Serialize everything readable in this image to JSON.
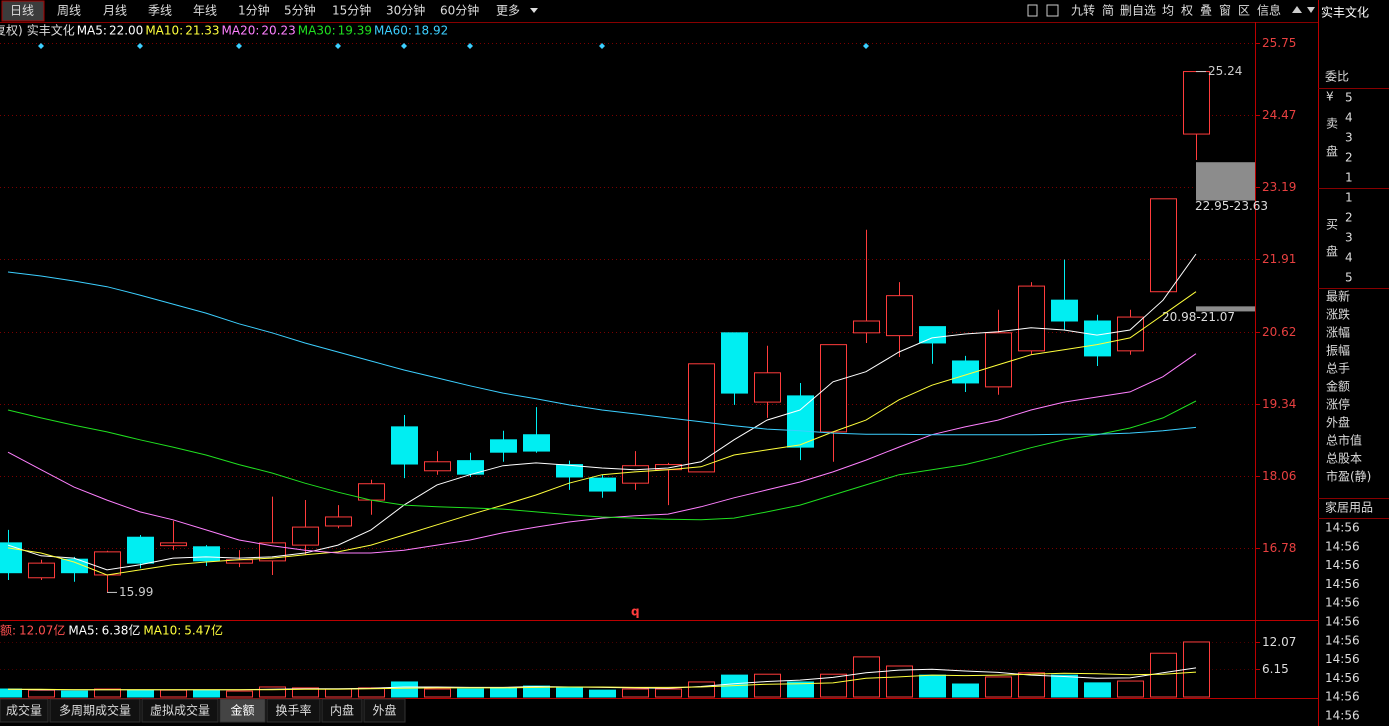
{
  "toolbar": {
    "tabs": [
      "日线",
      "周线",
      "月线",
      "季线",
      "年线",
      "1分钟",
      "5分钟",
      "15分钟",
      "30分钟",
      "60分钟",
      "更多"
    ],
    "active": 0,
    "tools": [
      "九转",
      "简",
      "删自选",
      "均",
      "权",
      "叠",
      "窗",
      "区",
      "信息"
    ],
    "stock_name": "实丰文化"
  },
  "chart_data": [
    {
      "type": "candlestick",
      "prefix": "复权)",
      "name": "实丰文化",
      "open": [
        16.87,
        16.25,
        16.58,
        16.3,
        16.97,
        16.82,
        16.8,
        16.51,
        16.55,
        16.83,
        17.17,
        17.63,
        18.93,
        18.15,
        18.33,
        18.7,
        18.79,
        18.26,
        18.02,
        17.93,
        18.17,
        18.13,
        20.6,
        19.37,
        19.48,
        18.84,
        20.6,
        20.55,
        20.71,
        20.1,
        19.64,
        20.28,
        21.18,
        20.81,
        20.28,
        21.33,
        24.13
      ],
      "high": [
        17.1,
        16.57,
        16.62,
        16.73,
        17.01,
        17.26,
        16.83,
        16.74,
        17.69,
        17.63,
        17.54,
        17.99,
        19.14,
        18.5,
        18.47,
        18.86,
        19.28,
        18.33,
        18.08,
        18.5,
        18.29,
        20.05,
        20.6,
        20.37,
        19.71,
        20.39,
        22.43,
        21.5,
        20.71,
        20.19,
        21.01,
        21.5,
        21.9,
        20.92,
        21.01,
        22.98,
        25.24
      ],
      "low": [
        16.21,
        16.21,
        16.18,
        15.99,
        16.42,
        16.74,
        16.46,
        16.44,
        16.3,
        16.66,
        17.13,
        17.37,
        18.02,
        18.08,
        18.04,
        18.31,
        18.47,
        17.81,
        17.67,
        17.81,
        17.54,
        18.13,
        19.32,
        19.09,
        18.34,
        18.31,
        20.42,
        20.17,
        20.05,
        19.55,
        19.5,
        20.21,
        20.65,
        20.01,
        20.21,
        21.33,
        23.67
      ],
      "close": [
        16.34,
        16.51,
        16.34,
        16.71,
        16.51,
        16.87,
        16.55,
        16.57,
        16.87,
        17.15,
        17.33,
        17.92,
        18.27,
        18.31,
        18.09,
        18.48,
        18.5,
        18.04,
        17.79,
        18.24,
        18.26,
        20.05,
        19.53,
        19.89,
        18.57,
        20.39,
        20.81,
        21.26,
        20.42,
        19.71,
        20.6,
        21.43,
        20.81,
        20.19,
        20.88,
        22.98,
        25.24
      ],
      "up_color": "#ff3c3c",
      "down_color": "#00eef2",
      "series": [
        {
          "name": "MA5:",
          "value_label": "22.00",
          "color": "#ffffff",
          "values": [
            16.83,
            16.64,
            16.6,
            16.39,
            16.48,
            16.6,
            16.62,
            16.6,
            16.62,
            16.69,
            16.83,
            17.1,
            17.54,
            17.9,
            18.08,
            18.24,
            18.29,
            18.25,
            18.2,
            18.17,
            18.2,
            18.31,
            18.7,
            19.05,
            19.23,
            19.73,
            19.91,
            20.26,
            20.51,
            20.58,
            20.62,
            20.69,
            20.65,
            20.56,
            20.65,
            21.18,
            22.0
          ]
        },
        {
          "name": "MA10:",
          "value_label": "21.33",
          "color": "#ffff3c",
          "values": [
            16.78,
            16.69,
            16.53,
            16.3,
            16.39,
            16.48,
            16.53,
            16.57,
            16.6,
            16.66,
            16.71,
            16.83,
            17.01,
            17.19,
            17.37,
            17.54,
            17.72,
            17.93,
            18.08,
            18.13,
            18.17,
            18.22,
            18.43,
            18.52,
            18.61,
            18.84,
            19.05,
            19.41,
            19.67,
            19.85,
            20.03,
            20.21,
            20.3,
            20.39,
            20.51,
            20.92,
            21.33
          ]
        },
        {
          "name": "MA20:",
          "value_label": "20.23",
          "color": "#ff80ff",
          "values": [
            18.48,
            18.17,
            17.86,
            17.63,
            17.42,
            17.28,
            17.1,
            16.92,
            16.82,
            16.74,
            16.69,
            16.69,
            16.74,
            16.83,
            16.92,
            17.05,
            17.15,
            17.24,
            17.31,
            17.35,
            17.38,
            17.51,
            17.67,
            17.81,
            17.95,
            18.13,
            18.34,
            18.57,
            18.79,
            18.93,
            19.05,
            19.23,
            19.37,
            19.46,
            19.55,
            19.82,
            20.23
          ]
        },
        {
          "name": "MA30:",
          "value_label": "19.39",
          "color": "#20e020",
          "values": [
            19.23,
            19.09,
            18.96,
            18.84,
            18.7,
            18.57,
            18.43,
            18.26,
            18.11,
            17.93,
            17.77,
            17.63,
            17.54,
            17.51,
            17.49,
            17.47,
            17.42,
            17.37,
            17.33,
            17.31,
            17.29,
            17.28,
            17.31,
            17.42,
            17.54,
            17.72,
            17.9,
            18.08,
            18.17,
            18.26,
            18.4,
            18.56,
            18.7,
            18.79,
            18.91,
            19.09,
            19.39
          ]
        },
        {
          "name": "MA60:",
          "value_label": "18.92",
          "color": "#3ccfff",
          "values": [
            21.68,
            21.61,
            21.52,
            21.42,
            21.27,
            21.11,
            20.95,
            20.76,
            20.6,
            20.42,
            20.26,
            20.1,
            19.94,
            19.8,
            19.66,
            19.53,
            19.43,
            19.32,
            19.23,
            19.16,
            19.09,
            19.02,
            18.95,
            18.89,
            18.86,
            18.82,
            18.8,
            18.8,
            18.79,
            18.79,
            18.79,
            18.79,
            18.8,
            18.8,
            18.82,
            18.86,
            18.92
          ]
        }
      ],
      "ylim": [
        15.5,
        26.12
      ],
      "yticks": [
        25.75,
        24.47,
        23.19,
        21.91,
        20.62,
        19.34,
        18.06,
        16.78
      ],
      "high_mark": {
        "index": 36,
        "value": 25.24
      },
      "low_mark": {
        "index": 3,
        "value": 15.99
      },
      "bands": [
        {
          "low": 22.95,
          "high": 23.63,
          "label": "22.95-23.63",
          "color": "#8c8c8c"
        },
        {
          "low": 20.98,
          "high": 21.07,
          "label": "20.98-21.07",
          "color": "#8c8c8c"
        }
      ],
      "event_markers": [
        1,
        4,
        7,
        10,
        12,
        14,
        18,
        26
      ],
      "event_color": "#3ccfff",
      "note": {
        "index": 19,
        "text": "q"
      }
    },
    {
      "type": "bar",
      "header": [
        "额:",
        "12.07亿"
      ],
      "values": [
        1.75,
        1.5,
        1.3,
        1.75,
        1.5,
        1.5,
        1.5,
        1.3,
        2.2,
        2.0,
        1.75,
        2.0,
        3.3,
        1.75,
        1.75,
        2.0,
        2.4,
        2.2,
        1.5,
        1.75,
        1.75,
        3.3,
        4.8,
        5.0,
        3.3,
        5.0,
        8.8,
        6.8,
        4.8,
        2.85,
        4.4,
        5.3,
        4.8,
        3.1,
        3.5,
        9.6,
        12.07
      ],
      "series": [
        {
          "name": "MA5:",
          "value_label": "6.38亿",
          "color": "#ffffff",
          "values": [
            1.7,
            1.6,
            1.6,
            1.6,
            1.6,
            1.6,
            1.6,
            1.6,
            1.7,
            1.8,
            1.8,
            1.9,
            2.2,
            2.2,
            2.1,
            2.1,
            2.3,
            2.2,
            2.1,
            2.0,
            1.9,
            2.3,
            2.9,
            3.4,
            3.7,
            4.3,
            5.3,
            5.9,
            6.1,
            5.7,
            5.4,
            4.8,
            4.5,
            4.1,
            4.2,
            5.3,
            6.38
          ]
        },
        {
          "name": "MA10:",
          "value_label": "5.47亿",
          "color": "#ffff3c",
          "values": [
            1.7,
            1.7,
            1.6,
            1.6,
            1.6,
            1.6,
            1.6,
            1.6,
            1.6,
            1.7,
            1.7,
            1.8,
            1.9,
            2.0,
            2.0,
            2.0,
            2.1,
            2.2,
            2.2,
            2.1,
            2.1,
            2.2,
            2.5,
            2.8,
            2.9,
            3.1,
            4.1,
            4.4,
            4.8,
            4.7,
            4.8,
            5.0,
            5.2,
            5.1,
            4.9,
            5.0,
            5.47
          ]
        }
      ],
      "ylim": [
        0,
        16.67
      ],
      "yticks": [
        12.07,
        6.15
      ]
    }
  ],
  "bottom_tabs": {
    "tabs": [
      "成交量",
      "多周期成交量",
      "虚拟成交量",
      "金额",
      "换手率",
      "内盘",
      "外盘"
    ],
    "active": 3
  },
  "side_panel": {
    "title": "实丰文化",
    "ratio": "委比",
    "sell_label": [
      "¥",
      "卖",
      "盘"
    ],
    "sell_levels": [
      "5",
      "4",
      "3",
      "2",
      "1"
    ],
    "buy_label": [
      "买",
      "盘"
    ],
    "buy_levels": [
      "1",
      "2",
      "3",
      "4",
      "5"
    ],
    "fields": [
      "最新",
      "涨跌",
      "涨幅",
      "振幅",
      "总手",
      "金额",
      "涨停",
      "外盘",
      "总市值",
      "总股本",
      "市盈(静)"
    ],
    "industry": "家居用品",
    "times": [
      "14:56",
      "14:56",
      "14:56",
      "14:56",
      "14:56",
      "14:56",
      "14:56",
      "14:56",
      "14:56",
      "14:56",
      "14:56"
    ]
  }
}
